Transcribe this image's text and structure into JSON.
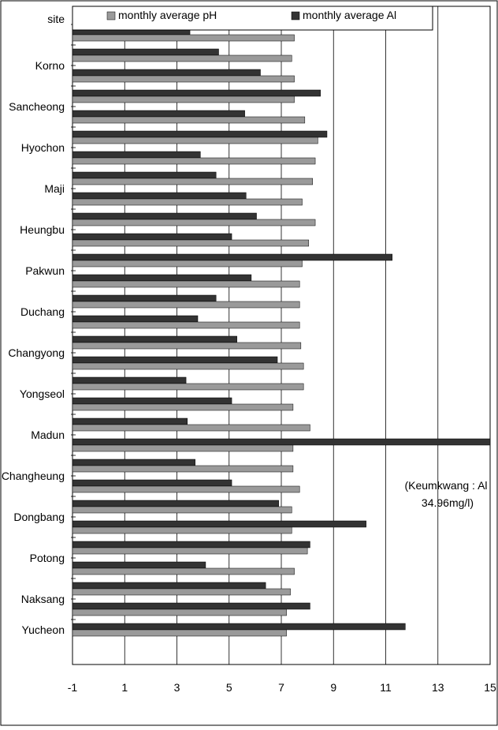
{
  "chart_data": {
    "type": "bar",
    "orientation": "horizontal",
    "xlim": [
      -1,
      15
    ],
    "x_ticks": [
      "-1",
      "1",
      "3",
      "5",
      "7",
      "9",
      "11",
      "13",
      "15"
    ],
    "y_header": "site",
    "legend_position": "top",
    "grid": "vertical",
    "colors": {
      "ph": "#9a9a9a",
      "al": "#333333"
    },
    "series": [
      {
        "name": "monthly average pH",
        "key": "ph"
      },
      {
        "name": "monthly average Al",
        "key": "al"
      }
    ],
    "sites": [
      {
        "label": "",
        "groups": [
          {
            "al": 3.5,
            "ph": 7.5
          }
        ]
      },
      {
        "label": "Korno",
        "groups": [
          {
            "al": 4.6,
            "ph": 7.4
          },
          {
            "al": 6.2,
            "ph": 7.5
          }
        ]
      },
      {
        "label": "Sancheong",
        "groups": [
          {
            "al": 8.5,
            "ph": 7.5
          },
          {
            "al": 5.6,
            "ph": 7.9
          }
        ]
      },
      {
        "label": "Hyochon",
        "groups": [
          {
            "al": 8.75,
            "ph": 8.4
          },
          {
            "al": 3.9,
            "ph": 8.3
          }
        ]
      },
      {
        "label": "Maji",
        "groups": [
          {
            "al": 4.5,
            "ph": 8.2
          },
          {
            "al": 5.65,
            "ph": 7.8
          }
        ]
      },
      {
        "label": "Heungbu",
        "groups": [
          {
            "al": 6.05,
            "ph": 8.3
          },
          {
            "al": 5.1,
            "ph": 8.05
          }
        ]
      },
      {
        "label": "Pakwun",
        "groups": [
          {
            "al": 11.25,
            "ph": 7.8
          },
          {
            "al": 5.85,
            "ph": 7.7
          }
        ]
      },
      {
        "label": "Duchang",
        "groups": [
          {
            "al": 4.5,
            "ph": 7.7
          },
          {
            "al": 3.8,
            "ph": 7.7
          }
        ]
      },
      {
        "label": "Changyong",
        "groups": [
          {
            "al": 5.3,
            "ph": 7.75
          },
          {
            "al": 6.85,
            "ph": 7.85
          }
        ]
      },
      {
        "label": "Yongseol",
        "groups": [
          {
            "al": 3.35,
            "ph": 7.85
          },
          {
            "al": 5.1,
            "ph": 7.45
          }
        ]
      },
      {
        "label": "Madun",
        "groups": [
          {
            "al": 3.4,
            "ph": 8.1
          },
          {
            "al": 15.0,
            "ph": 7.45
          }
        ]
      },
      {
        "label": "Changheung",
        "groups": [
          {
            "al": 3.7,
            "ph": 7.45
          },
          {
            "al": 5.1,
            "ph": 7.7
          }
        ]
      },
      {
        "label": "Dongbang",
        "groups": [
          {
            "al": 6.9,
            "ph": 7.4
          },
          {
            "al": 10.25,
            "ph": 7.4
          }
        ]
      },
      {
        "label": "Potong",
        "groups": [
          {
            "al": 8.1,
            "ph": 8.0
          },
          {
            "al": 4.1,
            "ph": 7.5
          }
        ]
      },
      {
        "label": "Naksang",
        "groups": [
          {
            "al": 6.4,
            "ph": 7.35
          },
          {
            "al": 8.1,
            "ph": 7.2
          }
        ]
      },
      {
        "label": "Yucheon",
        "groups": [
          {
            "al": 11.75,
            "ph": 7.2
          }
        ]
      }
    ],
    "annotation": {
      "line1": "(Keumkwang : Al",
      "line2": "34.96mg/l)"
    }
  }
}
